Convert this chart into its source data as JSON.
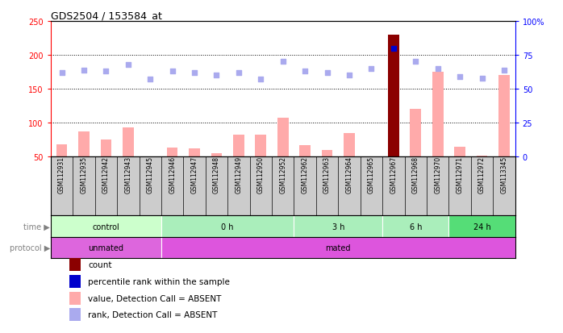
{
  "title": "GDS2504 / 153584_at",
  "samples": [
    "GSM112931",
    "GSM112935",
    "GSM112942",
    "GSM112943",
    "GSM112945",
    "GSM112946",
    "GSM112947",
    "GSM112948",
    "GSM112949",
    "GSM112950",
    "GSM112952",
    "GSM112962",
    "GSM112963",
    "GSM112964",
    "GSM112965",
    "GSM112967",
    "GSM112968",
    "GSM112970",
    "GSM112971",
    "GSM112972",
    "GSM113345"
  ],
  "bar_values": [
    68,
    87,
    75,
    93,
    50,
    63,
    62,
    55,
    82,
    83,
    108,
    67,
    60,
    85,
    50,
    230,
    120,
    175,
    65,
    52,
    170
  ],
  "rank_values": [
    62,
    64,
    63,
    68,
    57,
    63,
    62,
    60,
    62,
    57,
    70,
    63,
    62,
    60,
    65,
    80,
    70,
    65,
    59,
    58,
    64
  ],
  "highlight_idx": 15,
  "bar_color": "#ffaaaa",
  "rank_color": "#aaaaee",
  "highlight_bar_color": "#8b0000",
  "highlight_rank_color": "#0000cc",
  "ylim": [
    50,
    250
  ],
  "ylim_right": [
    0,
    100
  ],
  "yticks_left": [
    50,
    100,
    150,
    200,
    250
  ],
  "yticks_right": [
    0,
    25,
    50,
    75,
    100
  ],
  "grid_values": [
    100,
    150,
    200
  ],
  "time_groups": [
    {
      "label": "control",
      "start": 0,
      "end": 5,
      "color": "#ccffcc"
    },
    {
      "label": "0 h",
      "start": 5,
      "end": 11,
      "color": "#aaeebb"
    },
    {
      "label": "3 h",
      "start": 11,
      "end": 15,
      "color": "#aaeebb"
    },
    {
      "label": "6 h",
      "start": 15,
      "end": 18,
      "color": "#aaeebb"
    },
    {
      "label": "24 h",
      "start": 18,
      "end": 21,
      "color": "#55dd77"
    }
  ],
  "protocol_groups": [
    {
      "label": "unmated",
      "start": 0,
      "end": 5,
      "color": "#dd66dd"
    },
    {
      "label": "mated",
      "start": 5,
      "end": 21,
      "color": "#dd55dd"
    }
  ],
  "legend_items": [
    {
      "label": "count",
      "color": "#8b0000"
    },
    {
      "label": "percentile rank within the sample",
      "color": "#0000cc"
    },
    {
      "label": "value, Detection Call = ABSENT",
      "color": "#ffaaaa"
    },
    {
      "label": "rank, Detection Call = ABSENT",
      "color": "#aaaaee"
    }
  ],
  "bar_bottom": 50,
  "xlabels_bg": "#cccccc"
}
